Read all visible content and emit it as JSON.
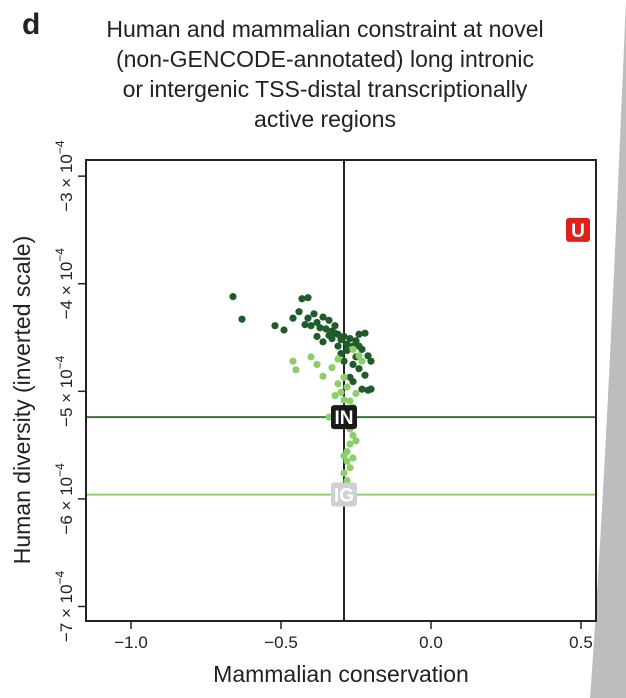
{
  "panel_label": "d",
  "chart_data": {
    "type": "scatter",
    "title_lines": [
      "Human and mammalian constraint at novel",
      "(non-GENCODE-annotated) long intronic",
      "or intergenic TSS-distal transcriptionally",
      "active regions"
    ],
    "xlabel": "Mammalian conservation",
    "ylabel": "Human diversity (inverted scale)",
    "xlim": [
      -1.15,
      0.55
    ],
    "ylim": [
      -0.000285,
      -0.0007135
    ],
    "y_inverted": true,
    "x_ticks": [
      {
        "value": -1.0,
        "label": "−1.0"
      },
      {
        "value": -0.5,
        "label": "−0.5"
      },
      {
        "value": 0.0,
        "label": "0.0"
      },
      {
        "value": 0.5,
        "label": "0.5"
      }
    ],
    "y_ticks": [
      {
        "value": -0.0003,
        "mantissa": "−3",
        "times": "×",
        "base": "10",
        "exp": "−4"
      },
      {
        "value": -0.0004,
        "mantissa": "−4",
        "times": "×",
        "base": "10",
        "exp": "−4"
      },
      {
        "value": -0.0005,
        "mantissa": "−5",
        "times": "×",
        "base": "10",
        "exp": "−4"
      },
      {
        "value": -0.0006,
        "mantissa": "−6",
        "times": "×",
        "base": "10",
        "exp": "−4"
      },
      {
        "value": -0.0007,
        "mantissa": "−7",
        "times": "×",
        "base": "10",
        "exp": "−4"
      }
    ],
    "reference_lines": [
      {
        "orientation": "vertical",
        "x": -0.29,
        "color": "#222222"
      },
      {
        "orientation": "horizontal",
        "y": -0.000524,
        "color": "#3d6e3a"
      },
      {
        "orientation": "horizontal",
        "y": -0.000596,
        "color": "#8fd16e"
      }
    ],
    "markers": [
      {
        "label": "U",
        "x": 0.49,
        "y": -0.00035,
        "bg": "#e0201b",
        "fg": "#ffffff"
      },
      {
        "label": "IN",
        "x": -0.29,
        "y": -0.000524,
        "bg": "#1a1a1a",
        "fg": "#ffffff"
      },
      {
        "label": "IG",
        "x": -0.29,
        "y": -0.000596,
        "bg": "#d0d0d0",
        "fg": "#ffffff"
      }
    ],
    "grid": false,
    "series": [
      {
        "color": "#1f5c2a",
        "points": [
          [
            -0.66,
            -0.000412
          ],
          [
            -0.63,
            -0.000433
          ],
          [
            -0.52,
            -0.000439
          ],
          [
            -0.49,
            -0.000443
          ],
          [
            -0.46,
            -0.000432
          ],
          [
            -0.44,
            -0.000426
          ],
          [
            -0.43,
            -0.000414
          ],
          [
            -0.41,
            -0.000413
          ],
          [
            -0.42,
            -0.000438
          ],
          [
            -0.41,
            -0.000432
          ],
          [
            -0.4,
            -0.000439
          ],
          [
            -0.39,
            -0.000428
          ],
          [
            -0.38,
            -0.000436
          ],
          [
            -0.37,
            -0.000441
          ],
          [
            -0.36,
            -0.000431
          ],
          [
            -0.35,
            -0.000442
          ],
          [
            -0.34,
            -0.000434
          ],
          [
            -0.33,
            -0.000444
          ],
          [
            -0.32,
            -0.000439
          ],
          [
            -0.31,
            -0.000447
          ],
          [
            -0.3,
            -0.000452
          ],
          [
            -0.29,
            -0.000449
          ],
          [
            -0.28,
            -0.000456
          ],
          [
            -0.27,
            -0.000451
          ],
          [
            -0.26,
            -0.000458
          ],
          [
            -0.25,
            -0.000453
          ],
          [
            -0.24,
            -0.000447
          ],
          [
            -0.23,
            -0.000461
          ],
          [
            -0.22,
            -0.000446
          ],
          [
            -0.21,
            -0.000467
          ],
          [
            -0.2,
            -0.000472
          ],
          [
            -0.22,
            -0.000485
          ],
          [
            -0.24,
            -0.000479
          ],
          [
            -0.26,
            -0.000491
          ],
          [
            -0.25,
            -0.000468
          ],
          [
            -0.23,
            -0.000498
          ],
          [
            -0.21,
            -0.000499
          ],
          [
            -0.2,
            -0.000498
          ],
          [
            -0.29,
            -0.000472
          ],
          [
            -0.31,
            -0.000458
          ],
          [
            -0.33,
            -0.000451
          ],
          [
            -0.36,
            -0.000454
          ],
          [
            -0.38,
            -0.000449
          ],
          [
            -0.27,
            -0.000487
          ],
          [
            -0.28,
            -0.000462
          ],
          [
            -0.3,
            -0.000465
          ],
          [
            -0.32,
            -0.000446
          ],
          [
            -0.34,
            -0.000448
          ],
          [
            -0.26,
            -0.000475
          ],
          [
            -0.24,
            -0.000458
          ]
        ]
      },
      {
        "color": "#8ccf6a",
        "points": [
          [
            -0.45,
            -0.00048
          ],
          [
            -0.46,
            -0.000472
          ],
          [
            -0.4,
            -0.000468
          ],
          [
            -0.38,
            -0.000475
          ],
          [
            -0.36,
            -0.000486
          ],
          [
            -0.33,
            -0.000478
          ],
          [
            -0.31,
            -0.000493
          ],
          [
            -0.3,
            -0.000501
          ],
          [
            -0.29,
            -0.000508
          ],
          [
            -0.28,
            -0.000496
          ],
          [
            -0.27,
            -0.000509
          ],
          [
            -0.26,
            -0.000515
          ],
          [
            -0.25,
            -0.000502
          ],
          [
            -0.27,
            -0.000522
          ],
          [
            -0.28,
            -0.000531
          ],
          [
            -0.26,
            -0.000541
          ],
          [
            -0.27,
            -0.000549
          ],
          [
            -0.28,
            -0.000556
          ],
          [
            -0.26,
            -0.000562
          ],
          [
            -0.27,
            -0.000571
          ],
          [
            -0.29,
            -0.000576
          ],
          [
            -0.28,
            -0.000583
          ],
          [
            -0.25,
            -0.000546
          ],
          [
            -0.29,
            -0.00056
          ],
          [
            -0.26,
            -0.000531
          ],
          [
            -0.32,
            -0.000504
          ],
          [
            -0.34,
            -0.000524
          ],
          [
            -0.24,
            -0.000467
          ],
          [
            -0.26,
            -0.000461
          ],
          [
            -0.23,
            -0.000472
          ],
          [
            -0.31,
            -0.00047
          ],
          [
            -0.29,
            -0.000487
          ],
          [
            -0.28,
            -0.000565
          ],
          [
            -0.27,
            -0.000535
          ],
          [
            -0.3,
            -0.000516
          ]
        ]
      }
    ]
  }
}
